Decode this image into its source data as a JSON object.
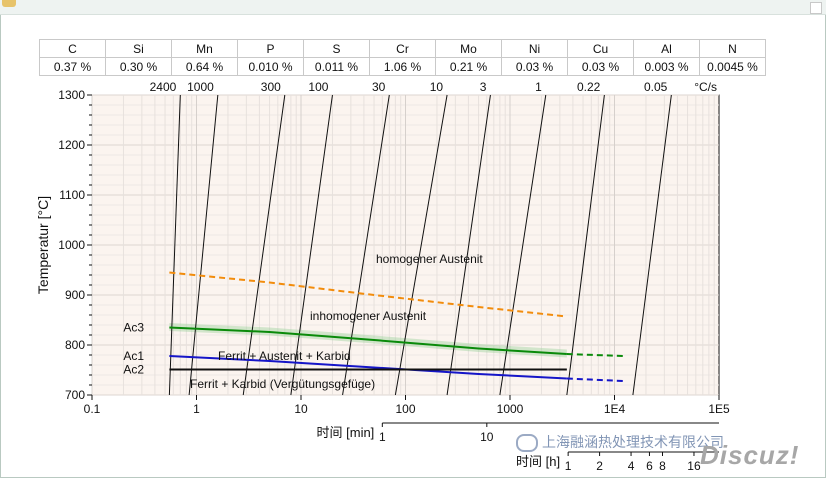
{
  "composition": {
    "elements": [
      "C",
      "Si",
      "Mn",
      "P",
      "S",
      "Cr",
      "Mo",
      "Ni",
      "Cu",
      "Al",
      "N"
    ],
    "values": [
      "0.37 %",
      "0.30 %",
      "0.64 %",
      "0.010 %",
      "0.011 %",
      "1.06 %",
      "0.21 %",
      "0.03 %",
      "0.03 %",
      "0.003 %",
      "0.0045 %"
    ]
  },
  "chart_data": {
    "type": "line",
    "ylabel": "Temperatur [°C]",
    "ylim": [
      700,
      1300
    ],
    "yticks": [
      "1300",
      "1200",
      "1100",
      "1000",
      "900",
      "800",
      "700"
    ],
    "yscale": "linear",
    "xscale": "log",
    "xlim": [
      0.1,
      100000
    ],
    "xticks": [
      "0.1",
      "1",
      "10",
      "100",
      "1000",
      "1E4",
      "1E5"
    ],
    "x_axis_min_label": "时间 [min]",
    "x_axis_min_ticks": [
      "1",
      "10"
    ],
    "x_axis_h_label": "时间 [h]",
    "x_axis_h_ticks": [
      "1",
      "2",
      "4",
      "6",
      "8",
      "16"
    ],
    "x_axis_h_values": [
      1,
      2,
      4,
      6,
      8,
      16
    ],
    "rate_unit": "°C/s",
    "rate_labels": [
      "2400",
      "1000",
      "300",
      "100",
      "30",
      "10",
      "3",
      "1",
      "0.22",
      "0.05"
    ],
    "rate_lines": [
      {
        "x_bottom": 0.55,
        "x_top": 0.7
      },
      {
        "x_bottom": 0.85,
        "x_top": 1.6
      },
      {
        "x_bottom": 2.8,
        "x_top": 7
      },
      {
        "x_bottom": 8,
        "x_top": 20
      },
      {
        "x_bottom": 25,
        "x_top": 70
      },
      {
        "x_bottom": 80,
        "x_top": 250
      },
      {
        "x_bottom": 250,
        "x_top": 650
      },
      {
        "x_bottom": 800,
        "x_top": 2200
      },
      {
        "x_bottom": 3500,
        "x_top": 8000
      },
      {
        "x_bottom": 15000,
        "x_top": 35000
      }
    ],
    "series": [
      {
        "name": "Ac3",
        "color": "#0a8a0a",
        "x": [
          0.55,
          5,
          50,
          500,
          3500
        ],
        "y": [
          835,
          826,
          810,
          793,
          782
        ],
        "ext_x": [
          3500,
          12000
        ],
        "ext_y": [
          782,
          778
        ]
      },
      {
        "name": "Ac1",
        "color": "#1515c8",
        "x": [
          0.55,
          5,
          50,
          500,
          3500
        ],
        "y": [
          778,
          768,
          755,
          742,
          733
        ],
        "ext_x": [
          3500,
          12000
        ],
        "ext_y": [
          733,
          728
        ]
      },
      {
        "name": "Ac2",
        "color": "#111111",
        "x": [
          0.55,
          3500
        ],
        "y": [
          751,
          751
        ]
      },
      {
        "name": "",
        "color": "#f28c0c",
        "dashed": true,
        "x": [
          0.55,
          5,
          50,
          500,
          3500
        ],
        "y": [
          945,
          925,
          900,
          876,
          857
        ]
      }
    ],
    "regions": [
      "homogener Austenit",
      "inhomogener Austenit",
      "Ferrit + Austenit + Karbid",
      "Ferrit + Karbid (Vergütungsgefüge)"
    ]
  },
  "watermark": "上海融涵热处理技术有限公司",
  "discuz": "Discuz!"
}
